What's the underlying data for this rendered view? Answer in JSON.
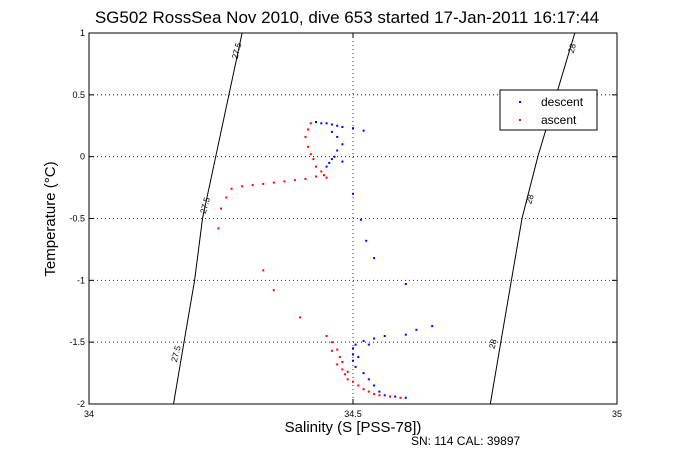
{
  "chart_data": {
    "type": "scatter",
    "title": "SG502 RossSea Nov 2010, dive 653 started 17-Jan-2011 16:17:44",
    "xlabel": "Salinity (S [PSS-78])",
    "ylabel": "Temperature (°C)",
    "xlim": [
      34,
      35
    ],
    "ylim": [
      -2,
      1
    ],
    "xticks": [
      34,
      34.5,
      35
    ],
    "yticks": [
      -2,
      -1.5,
      -1,
      -0.5,
      0,
      0.5,
      1
    ],
    "xtick_labels": [
      "34",
      "34.5",
      "35"
    ],
    "ytick_labels": [
      "-2",
      "-1.5",
      "-1",
      "-0.5",
      "0",
      "0.5",
      "1"
    ],
    "grid": true,
    "legend_position": "top-right",
    "footer": "SN: 114  CAL: 39897",
    "colors": {
      "descent": "#0000ff",
      "ascent": "#ff0000",
      "contour": "#000000"
    },
    "density_contours": [
      {
        "label": "27.5",
        "points": [
          [
            34.29,
            1.0
          ],
          [
            34.265,
            0.5
          ],
          [
            34.24,
            0.0
          ],
          [
            34.215,
            -0.5
          ],
          [
            34.2,
            -1.0
          ],
          [
            34.18,
            -1.5
          ],
          [
            34.16,
            -2.0
          ]
        ],
        "label_positions": [
          [
            34.285,
            0.85
          ],
          [
            34.225,
            -0.4
          ],
          [
            34.17,
            -1.6
          ]
        ]
      },
      {
        "label": "28",
        "points": [
          [
            34.92,
            1.0
          ],
          [
            34.885,
            0.5
          ],
          [
            34.85,
            0.0
          ],
          [
            34.82,
            -0.5
          ],
          [
            34.8,
            -1.0
          ],
          [
            34.78,
            -1.5
          ],
          [
            34.76,
            -2.0
          ]
        ],
        "label_positions": [
          [
            34.92,
            0.87
          ],
          [
            34.84,
            -0.35
          ],
          [
            34.77,
            -1.52
          ]
        ]
      }
    ],
    "series": [
      {
        "name": "descent",
        "marker": ".",
        "points": [
          [
            34.43,
            0.28
          ],
          [
            34.44,
            0.27
          ],
          [
            34.45,
            0.27
          ],
          [
            34.46,
            0.26
          ],
          [
            34.47,
            0.25
          ],
          [
            34.48,
            0.24
          ],
          [
            34.5,
            0.23
          ],
          [
            34.52,
            0.21
          ],
          [
            34.46,
            0.2
          ],
          [
            34.47,
            0.16
          ],
          [
            34.48,
            0.1
          ],
          [
            34.47,
            0.05
          ],
          [
            34.465,
            0.0
          ],
          [
            34.46,
            -0.02
          ],
          [
            34.455,
            -0.05
          ],
          [
            34.45,
            -0.08
          ],
          [
            34.48,
            -0.04
          ],
          [
            34.5,
            -0.3
          ],
          [
            34.515,
            -0.51
          ],
          [
            34.525,
            -0.68
          ],
          [
            34.54,
            -0.82
          ],
          [
            34.6,
            -1.03
          ],
          [
            34.65,
            -1.37
          ],
          [
            34.62,
            -1.4
          ],
          [
            34.6,
            -1.44
          ],
          [
            34.56,
            -1.45
          ],
          [
            34.54,
            -1.47
          ],
          [
            34.52,
            -1.49
          ],
          [
            34.505,
            -1.52
          ],
          [
            34.5,
            -1.55
          ],
          [
            34.5,
            -1.6
          ],
          [
            34.5,
            -1.65
          ],
          [
            34.505,
            -1.7
          ],
          [
            34.52,
            -1.75
          ],
          [
            34.53,
            -1.8
          ],
          [
            34.54,
            -1.85
          ],
          [
            34.55,
            -1.9
          ],
          [
            34.56,
            -1.93
          ],
          [
            34.58,
            -1.94
          ],
          [
            34.6,
            -1.95
          ],
          [
            34.51,
            -1.62
          ],
          [
            34.53,
            -1.52
          ]
        ]
      },
      {
        "name": "ascent",
        "marker": ".",
        "points": [
          [
            34.42,
            0.27
          ],
          [
            34.415,
            0.22
          ],
          [
            34.41,
            0.16
          ],
          [
            34.415,
            0.08
          ],
          [
            34.42,
            0.02
          ],
          [
            34.425,
            -0.02
          ],
          [
            34.43,
            -0.08
          ],
          [
            34.44,
            -0.12
          ],
          [
            34.445,
            -0.15
          ],
          [
            34.45,
            -0.17
          ],
          [
            34.43,
            -0.16
          ],
          [
            34.41,
            -0.18
          ],
          [
            34.39,
            -0.19
          ],
          [
            34.37,
            -0.2
          ],
          [
            34.35,
            -0.21
          ],
          [
            34.33,
            -0.22
          ],
          [
            34.31,
            -0.23
          ],
          [
            34.29,
            -0.24
          ],
          [
            34.27,
            -0.26
          ],
          [
            34.26,
            -0.33
          ],
          [
            34.25,
            -0.42
          ],
          [
            34.245,
            -0.58
          ],
          [
            34.33,
            -0.92
          ],
          [
            34.35,
            -1.08
          ],
          [
            34.4,
            -1.3
          ],
          [
            34.45,
            -1.45
          ],
          [
            34.46,
            -1.5
          ],
          [
            34.47,
            -1.56
          ],
          [
            34.475,
            -1.62
          ],
          [
            34.48,
            -1.66
          ],
          [
            34.48,
            -1.72
          ],
          [
            34.485,
            -1.76
          ],
          [
            34.49,
            -1.8
          ],
          [
            34.5,
            -1.82
          ],
          [
            34.51,
            -1.85
          ],
          [
            34.52,
            -1.88
          ],
          [
            34.53,
            -1.9
          ],
          [
            34.54,
            -1.92
          ],
          [
            34.55,
            -1.93
          ],
          [
            34.57,
            -1.94
          ],
          [
            34.59,
            -1.95
          ],
          [
            34.47,
            -1.68
          ],
          [
            34.49,
            -1.74
          ],
          [
            34.46,
            -1.57
          ]
        ]
      }
    ]
  }
}
